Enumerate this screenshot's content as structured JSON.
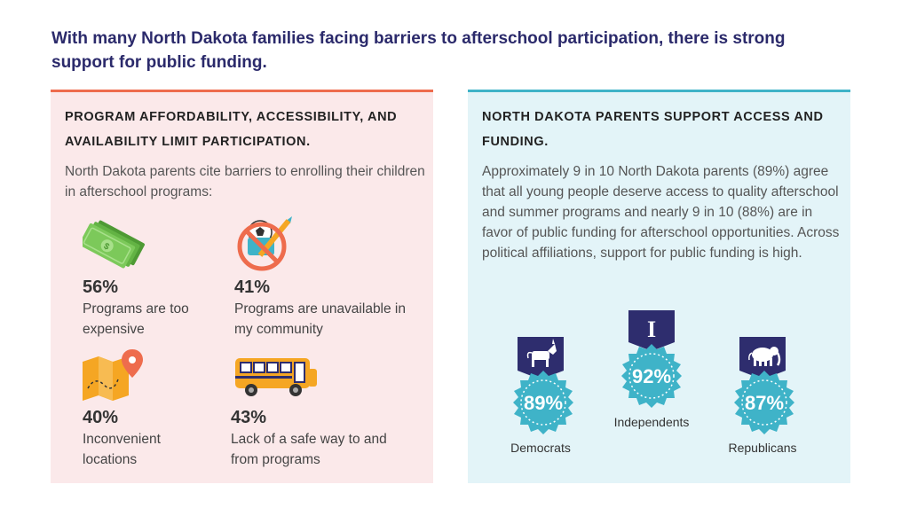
{
  "headline": "With many North Dakota families facing barriers to afterschool participation, there is strong support for public funding.",
  "left_panel": {
    "title": "PROGRAM AFFORDABILITY, ACCESSIBILITY, AND AVAILABILITY LIMIT PARTICIPATION.",
    "intro": "North Dakota parents cite barriers to enrolling their children in afterschool programs:",
    "barriers": [
      {
        "percent": "56%",
        "label": "Programs are too expensive",
        "icon": "money-icon"
      },
      {
        "percent": "41%",
        "label": "Programs are unavailable in my community",
        "icon": "no-activities-icon"
      },
      {
        "percent": "40%",
        "label": "Inconvenient locations",
        "icon": "map-location-icon"
      },
      {
        "percent": "43%",
        "label": "Lack of a safe way to and from programs",
        "icon": "school-bus-icon"
      }
    ]
  },
  "right_panel": {
    "title": "NORTH DAKOTA PARENTS SUPPORT ACCESS AND FUNDING.",
    "body": "Approximately 9 in 10 North Dakota parents (89%) agree that all young people deserve access to quality afterschool and summer programs and nearly 9 in 10 (88%) are in favor of public funding for afterschool opportunities. Across political affiliations, support for public funding is high.",
    "parties": [
      {
        "name": "Democrats",
        "percent": "89%",
        "icon": "donkey-icon"
      },
      {
        "name": "Independents",
        "percent": "92%",
        "icon": "letter-i-icon",
        "letter": "I"
      },
      {
        "name": "Republicans",
        "percent": "87%",
        "icon": "elephant-icon"
      }
    ]
  },
  "colors": {
    "headline": "#2b2a6b",
    "left_accent": "#ee6c4d",
    "right_accent": "#3fb3c8",
    "badge_teal": "#3fb3c8",
    "ribbon_navy": "#2e2d6e"
  }
}
